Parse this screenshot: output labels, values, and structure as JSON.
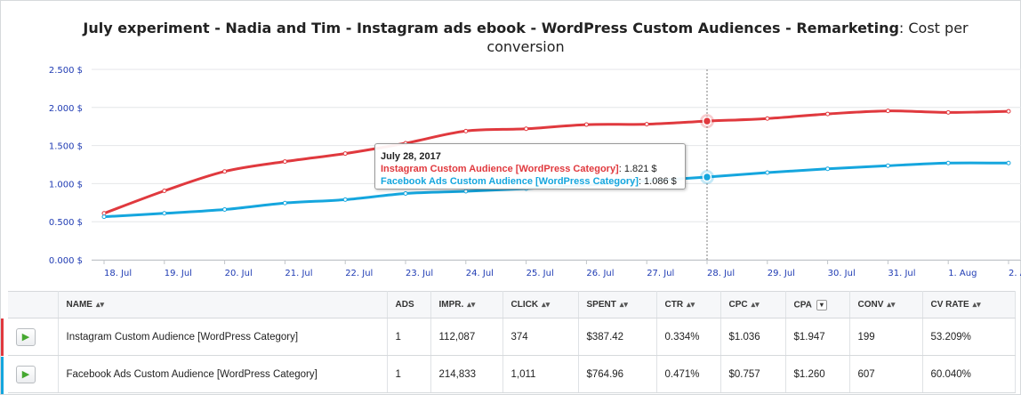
{
  "title": {
    "bold": "July experiment - Nadia and Tim - Instagram ads ebook - WordPress Custom Audiences - Remarketing",
    "normal": ": Cost per conversion"
  },
  "colors": {
    "red": "#e0393e",
    "blue": "#15a6de",
    "axis_text": "#1f3bb3"
  },
  "chart_data": {
    "type": "line",
    "title": "July experiment - Nadia and Tim - Instagram ads ebook - WordPress Custom Audiences - Remarketing: Cost per conversion",
    "xlabel": "",
    "ylabel": "",
    "ylim": [
      0,
      2500
    ],
    "yticks": [
      "0.000 $",
      "0.500 $",
      "1.000 $",
      "1.500 $",
      "2.000 $",
      "2.500 $"
    ],
    "grid": true,
    "categories": [
      "18. Jul",
      "19. Jul",
      "20. Jul",
      "21. Jul",
      "22. Jul",
      "23. Jul",
      "24. Jul",
      "25. Jul",
      "26. Jul",
      "27. Jul",
      "28. Jul",
      "29. Jul",
      "30. Jul",
      "31. Jul",
      "1. Aug",
      "2. A..."
    ],
    "series": [
      {
        "name": "Instagram Custom Audience [WordPress Category]",
        "color": "#e0393e",
        "values": [
          610,
          905,
          1160,
          1290,
          1395,
          1530,
          1690,
          1720,
          1775,
          1780,
          1821,
          1855,
          1915,
          1955,
          1935,
          1950
        ]
      },
      {
        "name": "Facebook Ads Custom Audience [WordPress Category]",
        "color": "#15a6de",
        "values": [
          565,
          610,
          660,
          745,
          790,
          870,
          900,
          935,
          980,
          1035,
          1086,
          1145,
          1195,
          1235,
          1270,
          1270
        ]
      }
    ],
    "highlight_index": 10
  },
  "tooltip": {
    "date": "July 28, 2017",
    "rows": [
      {
        "name": "Instagram Custom Audience [WordPress Category]",
        "value": ": 1.821 $"
      },
      {
        "name": "Facebook Ads Custom Audience [WordPress Category]",
        "value": ": 1.086 $"
      }
    ]
  },
  "table": {
    "headers": [
      "NAME",
      "ADS",
      "IMPR.",
      "CLICK",
      "SPENT",
      "CTR",
      "CPC",
      "CPA",
      "CONV",
      "CV RATE"
    ],
    "rows": [
      {
        "name": "Instagram Custom Audience [WordPress Category]",
        "ads": "1",
        "impr": "112,087",
        "click": "374",
        "spent": "$387.42",
        "ctr": "0.334%",
        "cpc": "$1.036",
        "cpa": "$1.947",
        "conv": "199",
        "cv_rate": "53.209%",
        "color": "#e0393e"
      },
      {
        "name": "Facebook Ads Custom Audience [WordPress Category]",
        "ads": "1",
        "impr": "214,833",
        "click": "1,011",
        "spent": "$764.96",
        "ctr": "0.471%",
        "cpc": "$0.757",
        "cpa": "$1.260",
        "conv": "607",
        "cv_rate": "60.040%",
        "color": "#15a6de"
      }
    ]
  }
}
